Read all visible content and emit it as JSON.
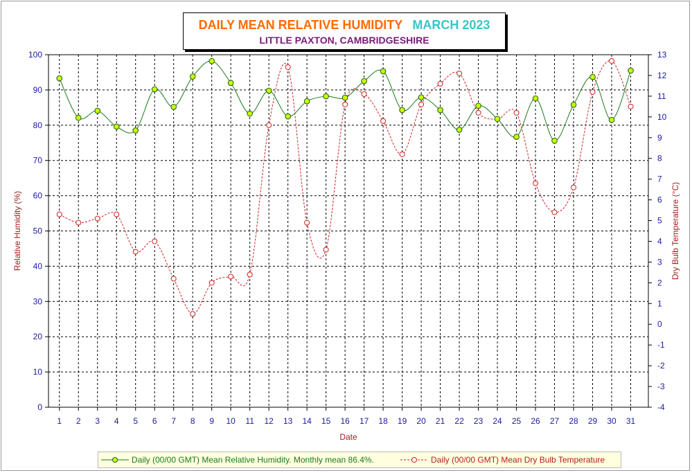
{
  "chart_data": {
    "type": "line",
    "title": "DAILY MEAN RELATIVE HUMIDITY",
    "title_month": "MARCH 2023",
    "subtitle": "LITTLE PAXTON, CAMBRIDGESHIRE",
    "xlabel": "Date",
    "ylabel": "Relative Humidity (%)",
    "y2label": "Dry Bulb Temperature (°C)",
    "x": [
      1,
      2,
      3,
      4,
      5,
      6,
      7,
      8,
      9,
      10,
      11,
      12,
      13,
      14,
      15,
      16,
      17,
      18,
      19,
      20,
      21,
      22,
      23,
      24,
      25,
      26,
      27,
      28,
      29,
      30,
      31
    ],
    "ylim": [
      0,
      100
    ],
    "y_ticks": [
      0,
      10,
      20,
      30,
      40,
      50,
      60,
      70,
      80,
      90,
      100
    ],
    "y2lim": [
      -4,
      13
    ],
    "y2_ticks": [
      -4,
      -3,
      -2,
      -1,
      0,
      1,
      2,
      3,
      4,
      5,
      6,
      7,
      8,
      9,
      10,
      11,
      12,
      13
    ],
    "grid": true,
    "legend_position": "bottom",
    "series": [
      {
        "name": "Daily (00/00 GMT) Mean Relative Humidity. Monthly mean 86.4%.",
        "axis": "left",
        "color": "#1a7a1a",
        "marker_fill": "#ccff00",
        "values": [
          93.3,
          82.1,
          84.1,
          79.6,
          78.5,
          90.2,
          85.2,
          93.8,
          98.2,
          92.0,
          83.3,
          89.8,
          82.5,
          86.8,
          88.2,
          87.8,
          92.5,
          95.3,
          84.3,
          87.9,
          84.3,
          78.7,
          85.5,
          81.8,
          76.7,
          87.6,
          75.6,
          85.8,
          93.7,
          81.5,
          95.5
        ]
      },
      {
        "name": "Daily (00/00 GMT) Mean Dry Bulb Temperature",
        "axis": "right",
        "color": "#cc2020",
        "marker_fill": "#ffffff",
        "values": [
          5.3,
          4.9,
          5.1,
          5.3,
          3.5,
          4.0,
          2.2,
          0.5,
          2.0,
          2.3,
          2.4,
          9.6,
          12.4,
          4.9,
          3.6,
          10.6,
          11.1,
          9.8,
          8.2,
          10.6,
          11.6,
          12.1,
          10.2,
          9.9,
          10.2,
          6.8,
          5.4,
          6.6,
          11.2,
          12.7,
          10.5
        ]
      }
    ]
  }
}
